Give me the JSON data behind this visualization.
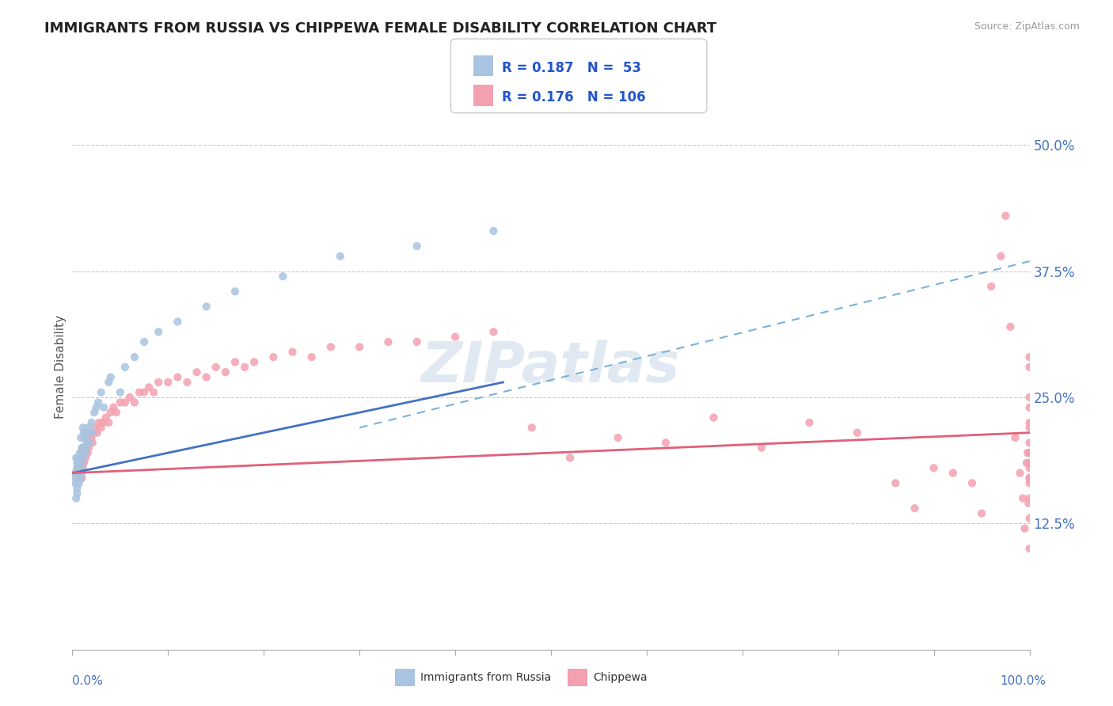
{
  "title": "IMMIGRANTS FROM RUSSIA VS CHIPPEWA FEMALE DISABILITY CORRELATION CHART",
  "source": "Source: ZipAtlas.com",
  "ylabel": "Female Disability",
  "y_ticks": [
    0.125,
    0.25,
    0.375,
    0.5
  ],
  "y_tick_labels": [
    "12.5%",
    "25.0%",
    "37.5%",
    "50.0%"
  ],
  "x_range": [
    0.0,
    1.0
  ],
  "y_range": [
    0.0,
    0.56
  ],
  "russia_R": 0.187,
  "russia_N": 53,
  "chippewa_R": 0.176,
  "chippewa_N": 106,
  "russia_color": "#a8c4e0",
  "chippewa_color": "#f4a0b0",
  "russia_line_color": "#4472c4",
  "chippewa_line_color": "#e0607a",
  "dashed_line_color": "#7ab0d8",
  "background_color": "#ffffff",
  "watermark": "ZIPatlas",
  "russia_scatter_x": [
    0.003,
    0.003,
    0.004,
    0.004,
    0.004,
    0.005,
    0.005,
    0.005,
    0.005,
    0.006,
    0.006,
    0.006,
    0.007,
    0.007,
    0.007,
    0.008,
    0.008,
    0.009,
    0.009,
    0.009,
    0.01,
    0.01,
    0.011,
    0.011,
    0.012,
    0.013,
    0.013,
    0.014,
    0.015,
    0.016,
    0.017,
    0.018,
    0.02,
    0.021,
    0.023,
    0.025,
    0.027,
    0.03,
    0.033,
    0.038,
    0.04,
    0.05,
    0.055,
    0.065,
    0.075,
    0.09,
    0.11,
    0.14,
    0.17,
    0.22,
    0.28,
    0.36,
    0.44
  ],
  "russia_scatter_y": [
    0.175,
    0.165,
    0.17,
    0.15,
    0.19,
    0.16,
    0.175,
    0.185,
    0.155,
    0.19,
    0.17,
    0.18,
    0.18,
    0.165,
    0.19,
    0.195,
    0.17,
    0.21,
    0.185,
    0.18,
    0.2,
    0.175,
    0.22,
    0.19,
    0.215,
    0.2,
    0.21,
    0.195,
    0.205,
    0.215,
    0.22,
    0.205,
    0.225,
    0.215,
    0.235,
    0.24,
    0.245,
    0.255,
    0.24,
    0.265,
    0.27,
    0.255,
    0.28,
    0.29,
    0.305,
    0.315,
    0.325,
    0.34,
    0.355,
    0.37,
    0.39,
    0.4,
    0.415
  ],
  "chippewa_scatter_x": [
    0.003,
    0.004,
    0.005,
    0.006,
    0.006,
    0.007,
    0.007,
    0.008,
    0.008,
    0.009,
    0.009,
    0.01,
    0.01,
    0.011,
    0.011,
    0.012,
    0.013,
    0.014,
    0.015,
    0.016,
    0.017,
    0.018,
    0.019,
    0.02,
    0.021,
    0.022,
    0.024,
    0.026,
    0.028,
    0.03,
    0.032,
    0.035,
    0.038,
    0.04,
    0.043,
    0.046,
    0.05,
    0.055,
    0.06,
    0.065,
    0.07,
    0.075,
    0.08,
    0.085,
    0.09,
    0.1,
    0.11,
    0.12,
    0.13,
    0.14,
    0.15,
    0.16,
    0.17,
    0.18,
    0.19,
    0.21,
    0.23,
    0.25,
    0.27,
    0.3,
    0.33,
    0.36,
    0.4,
    0.44,
    0.48,
    0.52,
    0.57,
    0.62,
    0.67,
    0.72,
    0.77,
    0.82,
    0.86,
    0.88,
    0.9,
    0.92,
    0.94,
    0.95,
    0.96,
    0.97,
    0.975,
    0.98,
    0.985,
    0.99,
    0.993,
    0.995,
    0.997,
    0.998,
    0.999,
    1.0,
    1.0,
    1.0,
    1.0,
    1.0,
    1.0,
    1.0,
    1.0,
    1.0,
    1.0,
    1.0,
    1.0,
    1.0,
    1.0,
    1.0,
    1.0,
    1.0
  ],
  "chippewa_scatter_y": [
    0.175,
    0.17,
    0.18,
    0.17,
    0.185,
    0.175,
    0.19,
    0.18,
    0.175,
    0.185,
    0.19,
    0.17,
    0.195,
    0.18,
    0.2,
    0.185,
    0.195,
    0.19,
    0.21,
    0.195,
    0.2,
    0.205,
    0.215,
    0.21,
    0.205,
    0.215,
    0.22,
    0.215,
    0.225,
    0.22,
    0.225,
    0.23,
    0.225,
    0.235,
    0.24,
    0.235,
    0.245,
    0.245,
    0.25,
    0.245,
    0.255,
    0.255,
    0.26,
    0.255,
    0.265,
    0.265,
    0.27,
    0.265,
    0.275,
    0.27,
    0.28,
    0.275,
    0.285,
    0.28,
    0.285,
    0.29,
    0.295,
    0.29,
    0.3,
    0.3,
    0.305,
    0.305,
    0.31,
    0.315,
    0.22,
    0.19,
    0.21,
    0.205,
    0.23,
    0.2,
    0.225,
    0.215,
    0.165,
    0.14,
    0.18,
    0.175,
    0.165,
    0.135,
    0.36,
    0.39,
    0.43,
    0.32,
    0.21,
    0.175,
    0.15,
    0.12,
    0.185,
    0.195,
    0.145,
    0.17,
    0.195,
    0.225,
    0.205,
    0.18,
    0.25,
    0.22,
    0.195,
    0.165,
    0.24,
    0.28,
    0.185,
    0.15,
    0.29,
    0.17,
    0.13,
    0.1
  ],
  "russia_line_x0": 0.0,
  "russia_line_x1": 0.45,
  "russia_line_y0": 0.175,
  "russia_line_y1": 0.265,
  "chippewa_line_x0": 0.0,
  "chippewa_line_x1": 1.0,
  "chippewa_line_y0": 0.175,
  "chippewa_line_y1": 0.215,
  "dashed_line_x0": 0.3,
  "dashed_line_x1": 1.0,
  "dashed_line_y0": 0.22,
  "dashed_line_y1": 0.385
}
